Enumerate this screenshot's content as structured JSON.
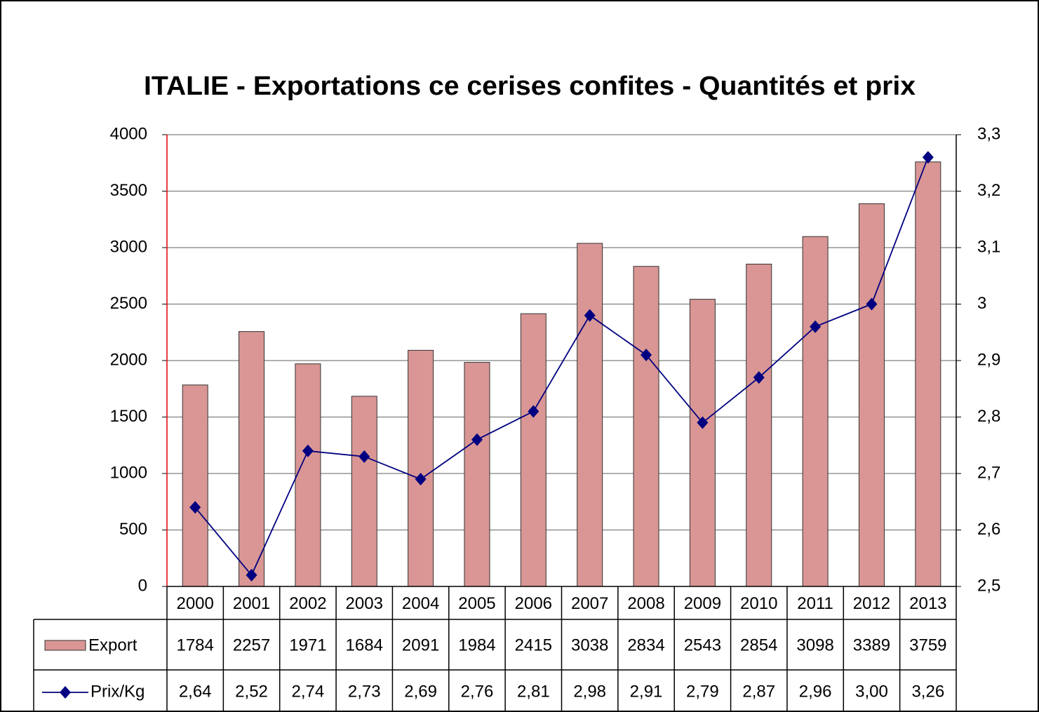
{
  "chart_data": {
    "type": "bar",
    "title": "ITALIE - Exportations ce cerises confites - Quantités et prix",
    "categories": [
      "2000",
      "2001",
      "2002",
      "2003",
      "2004",
      "2005",
      "2006",
      "2007",
      "2008",
      "2009",
      "2010",
      "2011",
      "2012",
      "2013"
    ],
    "series": [
      {
        "name": "Export",
        "type": "bar",
        "color": "#d99694",
        "values": [
          1784,
          2257,
          1971,
          1684,
          2091,
          1984,
          2415,
          3038,
          2834,
          2543,
          2854,
          3098,
          3389,
          3759
        ]
      },
      {
        "name": "Prix/Kg",
        "type": "line",
        "axis": "y2",
        "color": "#000080",
        "values": [
          2.64,
          2.52,
          2.74,
          2.73,
          2.69,
          2.76,
          2.81,
          2.98,
          2.91,
          2.79,
          2.87,
          2.96,
          3.0,
          3.26
        ],
        "value_labels": [
          "2,64",
          "2,52",
          "2,74",
          "2,73",
          "2,69",
          "2,76",
          "2,81",
          "2,98",
          "2,91",
          "2,79",
          "2,87",
          "2,96",
          "3,00",
          "3,26"
        ]
      }
    ],
    "ylim": [
      0,
      4000
    ],
    "yticks": [
      0,
      500,
      1000,
      1500,
      2000,
      2500,
      3000,
      3500,
      4000
    ],
    "y2lim": [
      2.5,
      3.3
    ],
    "y2ticks": [
      {
        "value": 2.5,
        "label": "2,5"
      },
      {
        "value": 2.6,
        "label": "2,6"
      },
      {
        "value": 2.7,
        "label": "2,7"
      },
      {
        "value": 2.8,
        "label": "2,8"
      },
      {
        "value": 2.9,
        "label": "2,9"
      },
      3,
      {
        "value": 3.1,
        "label": "3,1"
      },
      {
        "value": 3.2,
        "label": "3,2"
      },
      {
        "value": 3.3,
        "label": "3,3"
      }
    ],
    "grid": true
  }
}
